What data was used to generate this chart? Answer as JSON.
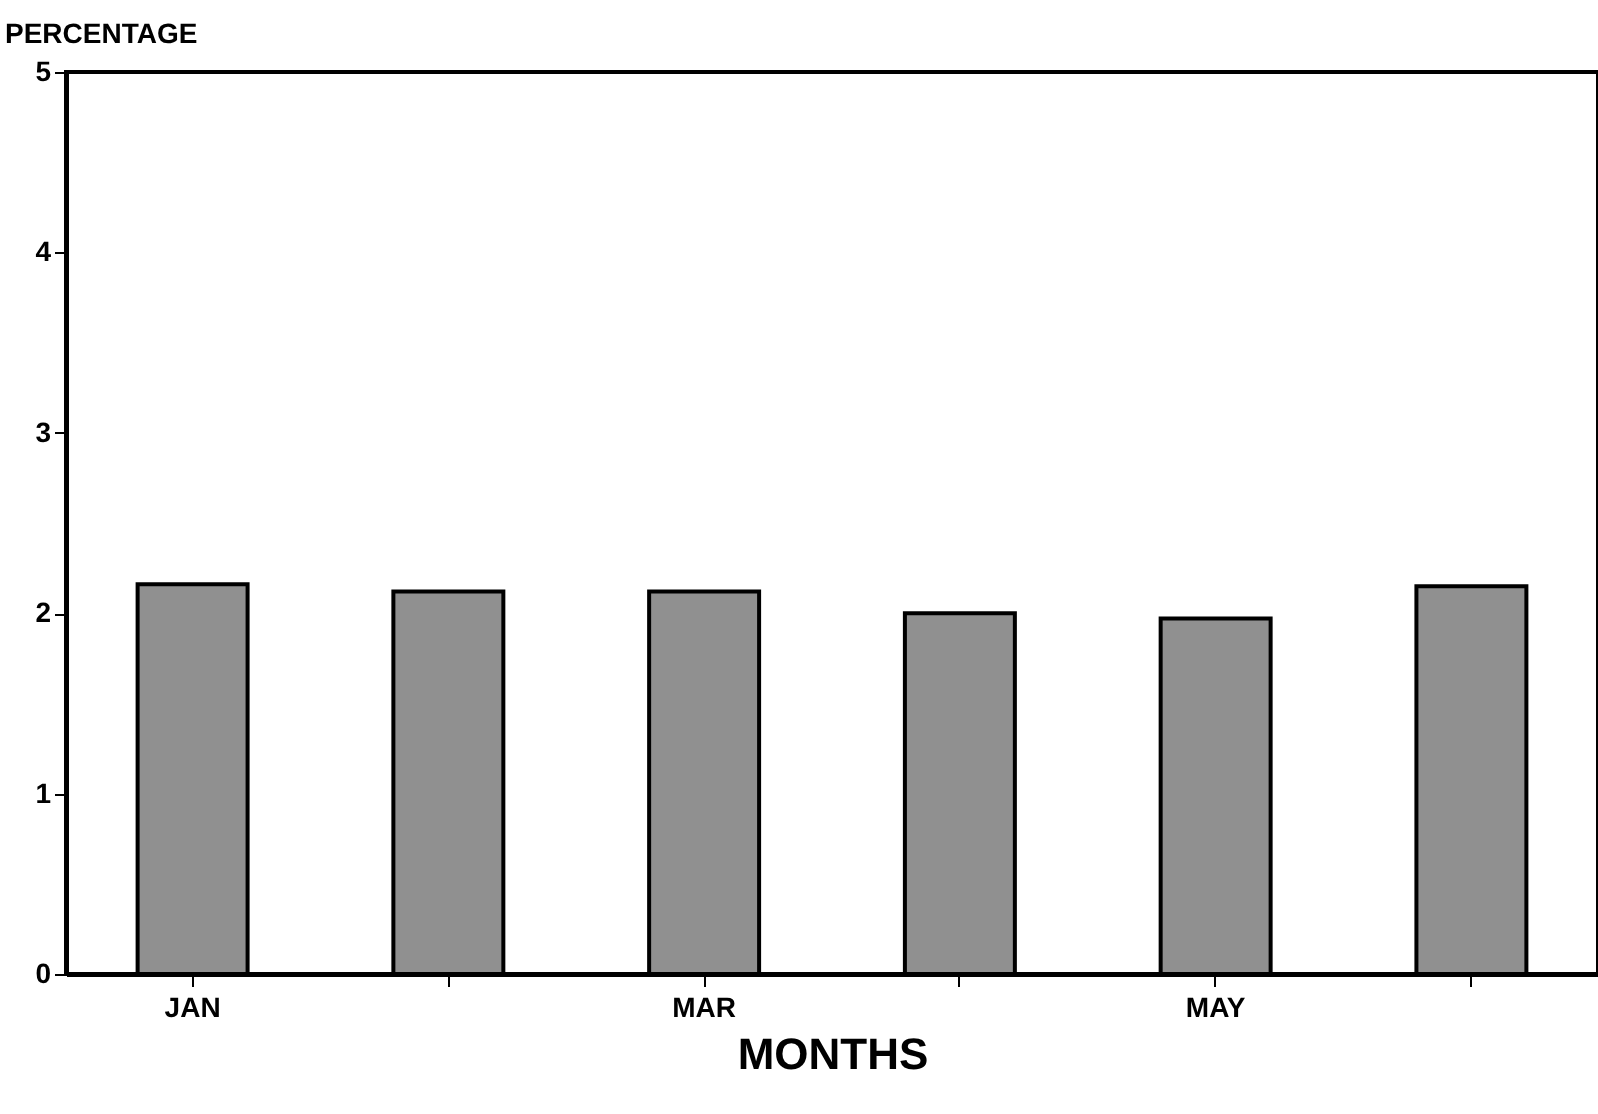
{
  "chart_data": {
    "type": "bar",
    "xlabel": "MONTHS",
    "ylabel": "PERCENTAGE",
    "categories": [
      "JAN",
      null,
      "MAR",
      null,
      "MAY",
      null
    ],
    "values": [
      2.16,
      2.12,
      2.12,
      2.0,
      1.97,
      2.15
    ],
    "color": "#909090",
    "ylim": [
      0,
      5
    ],
    "yticks": [
      0,
      1,
      2,
      3,
      4,
      5
    ],
    "grid": false
  }
}
